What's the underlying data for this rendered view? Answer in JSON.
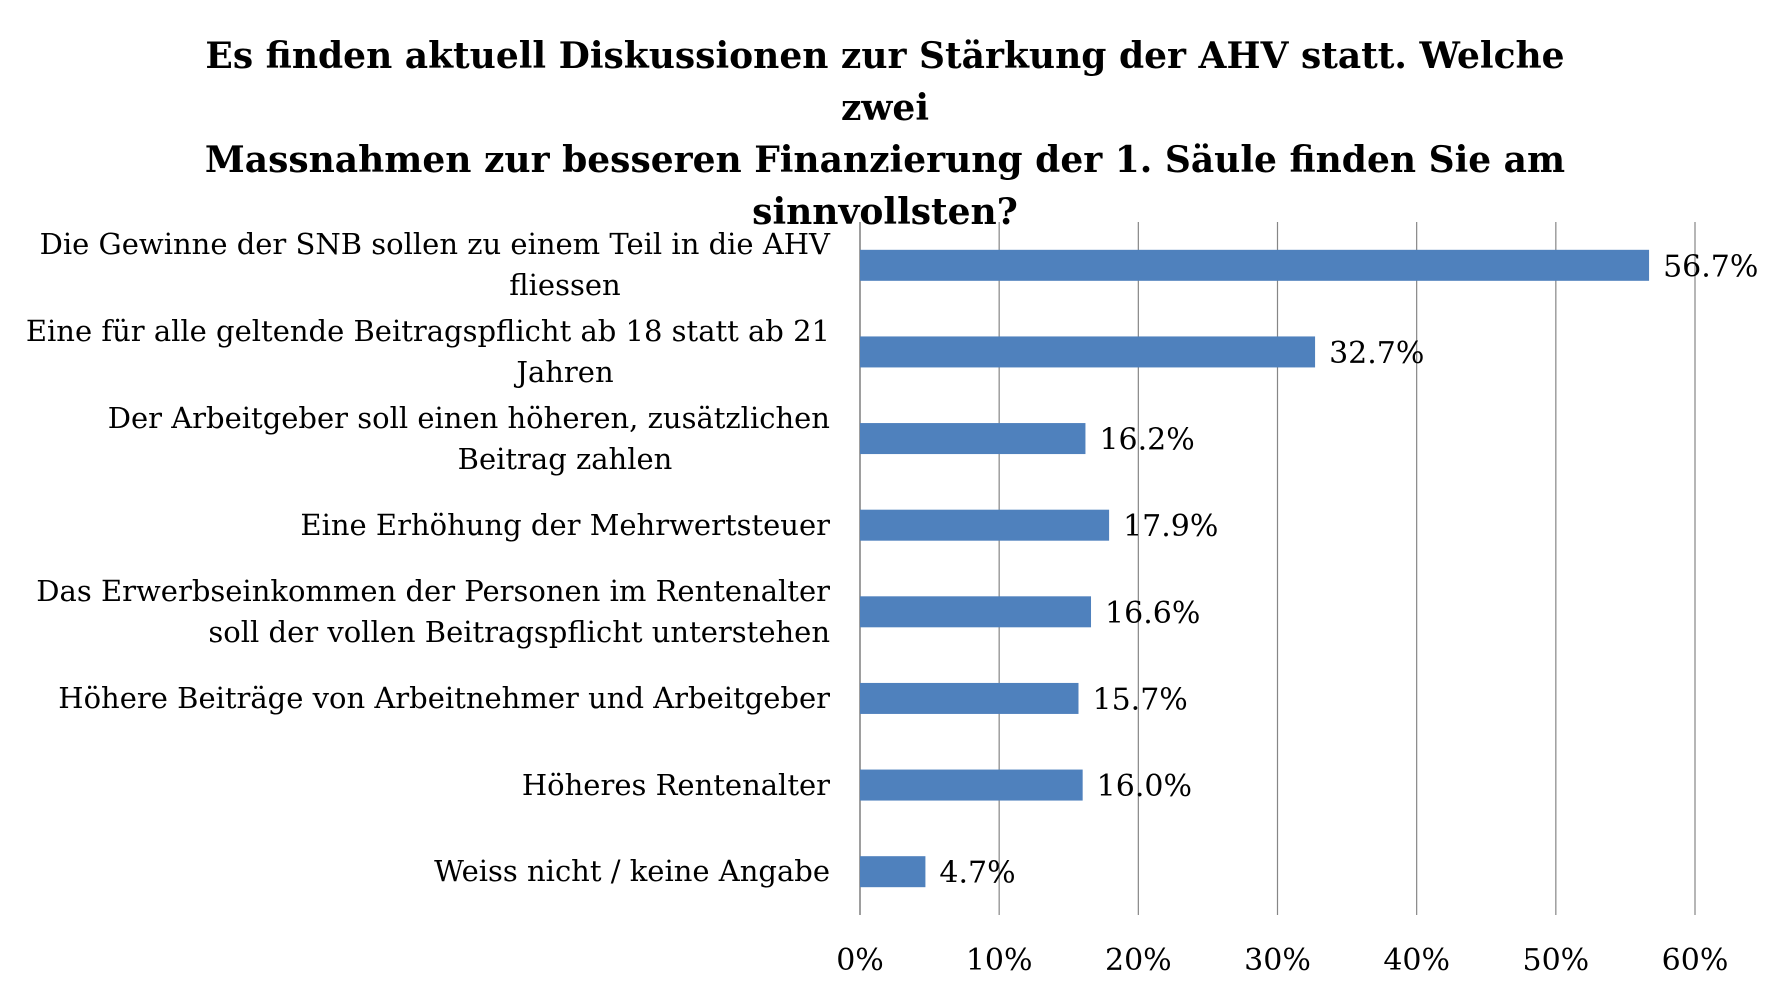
{
  "chart_data": {
    "type": "bar",
    "orientation": "horizontal",
    "title_lines": [
      "Es finden aktuell Diskussionen zur Stärkung der AHV statt. Welche zwei",
      "Massnahmen zur besseren Finanzierung der 1. Säule finden Sie am",
      "sinnvollsten?"
    ],
    "categories": [
      [
        "Die Gewinne der SNB sollen zu einem Teil in die AHV",
        "fliessen"
      ],
      [
        "Eine für alle geltende Beitragspflicht ab 18 statt ab 21",
        "Jahren"
      ],
      [
        "Der Arbeitgeber soll einen höheren, zusätzlichen",
        "Beitrag zahlen"
      ],
      [
        "Eine Erhöhung der Mehrwertsteuer"
      ],
      [
        "Das Erwerbseinkommen der Personen im Rentenalter",
        "soll der vollen Beitragspflicht unterstehen"
      ],
      [
        "Höhere Beiträge von Arbeitnehmer und Arbeitgeber"
      ],
      [
        "Höheres Rentenalter"
      ],
      [
        "Weiss nicht / keine Angabe"
      ]
    ],
    "values": [
      56.7,
      32.7,
      16.2,
      17.9,
      16.6,
      15.7,
      16.0,
      4.7
    ],
    "data_labels": [
      "56.7%",
      "32.7%",
      "16.2%",
      "17.9%",
      "16.6%",
      "15.7%",
      "16.0%",
      "4.7%"
    ],
    "x_ticks": [
      "0%",
      "10%",
      "20%",
      "30%",
      "40%",
      "50%",
      "60%"
    ],
    "x_tick_values": [
      0,
      10,
      20,
      30,
      40,
      50,
      60
    ],
    "xlim": [
      0,
      60
    ],
    "grid": true,
    "bar_color": "#4f81bd",
    "grid_color": "#868686",
    "legend": "none"
  }
}
